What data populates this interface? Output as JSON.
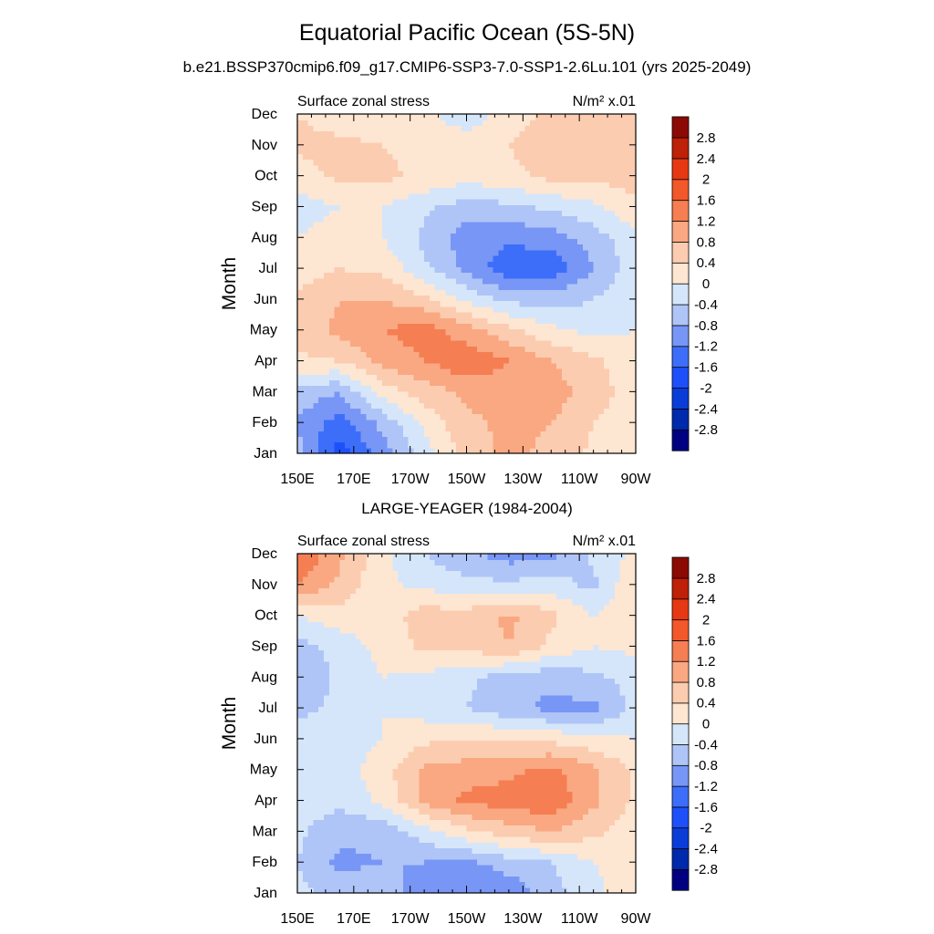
{
  "title": "Equatorial Pacific Ocean (5S-5N)",
  "subtitle": "b.e21.BSSP370cmip6.f09_g17.CMIP6-SSP3-7.0-SSP1-2.6Lu.101 (yrs 2025-2049)",
  "chart_data": [
    {
      "type": "heatmap",
      "title": "",
      "left_label": "Surface zonal stress",
      "units": "N/m² x.01",
      "ylabel": "Month",
      "x_ticks": [
        "150E",
        "170E",
        "170W",
        "150W",
        "130W",
        "110W",
        "90W"
      ],
      "y_ticks": [
        "Jan",
        "Feb",
        "Mar",
        "Apr",
        "May",
        "Jun",
        "Jul",
        "Aug",
        "Sep",
        "Oct",
        "Nov",
        "Dec"
      ],
      "xlim_degE": [
        150,
        270
      ],
      "x_values_degE": [
        150,
        165,
        180,
        195,
        210,
        225,
        240,
        255,
        270
      ],
      "values": [
        [
          -0.6,
          -1.8,
          -1.0,
          -0.2,
          0.6,
          0.9,
          0.7,
          0.3,
          0.0
        ],
        [
          -0.9,
          -1.4,
          -0.7,
          0.1,
          0.7,
          0.9,
          0.8,
          0.4,
          0.1
        ],
        [
          -0.5,
          -0.8,
          0.2,
          0.6,
          0.9,
          1.0,
          1.0,
          0.6,
          0.2
        ],
        [
          0.3,
          0.4,
          0.9,
          1.2,
          1.5,
          1.2,
          0.8,
          0.5,
          0.1
        ],
        [
          0.6,
          0.9,
          1.2,
          1.4,
          1.0,
          0.5,
          0.1,
          -0.1,
          0.0
        ],
        [
          0.5,
          0.8,
          0.8,
          0.5,
          -0.1,
          -0.5,
          -0.6,
          -0.4,
          0.0
        ],
        [
          0.2,
          0.4,
          0.3,
          -0.3,
          -0.9,
          -1.5,
          -1.5,
          -0.8,
          -0.2
        ],
        [
          0.0,
          0.2,
          0.0,
          -0.5,
          -1.0,
          -1.1,
          -1.0,
          -0.6,
          -0.1
        ],
        [
          -0.2,
          0.0,
          0.0,
          -0.3,
          -0.6,
          -0.5,
          -0.3,
          -0.1,
          0.3
        ],
        [
          0.2,
          0.5,
          0.5,
          0.3,
          0.2,
          0.3,
          0.5,
          0.5,
          0.6
        ],
        [
          0.5,
          0.5,
          0.4,
          0.3,
          0.3,
          0.4,
          0.6,
          0.6,
          0.6
        ],
        [
          0.4,
          0.2,
          0.1,
          0.1,
          -0.3,
          0.2,
          0.5,
          0.5,
          0.5
        ]
      ]
    },
    {
      "type": "heatmap",
      "title": "LARGE-YEAGER (1984-2004)",
      "left_label": "Surface zonal stress",
      "units": "N/m² x.01",
      "ylabel": "Month",
      "x_ticks": [
        "150E",
        "170E",
        "170W",
        "150W",
        "130W",
        "110W",
        "90W"
      ],
      "y_ticks": [
        "Jan",
        "Feb",
        "Mar",
        "Apr",
        "May",
        "Jun",
        "Jul",
        "Aug",
        "Sep",
        "Oct",
        "Nov",
        "Dec"
      ],
      "xlim_degE": [
        150,
        270
      ],
      "x_values_degE": [
        150,
        165,
        180,
        195,
        210,
        225,
        240,
        255,
        270
      ],
      "values": [
        [
          -0.3,
          -0.5,
          -0.6,
          -1.0,
          -1.2,
          -1.1,
          -0.6,
          -0.1,
          0.2
        ],
        [
          -0.4,
          -0.9,
          -0.8,
          -0.8,
          -0.9,
          -0.6,
          -0.4,
          0.0,
          0.2
        ],
        [
          -0.3,
          -0.7,
          -0.7,
          -0.2,
          0.3,
          0.6,
          0.8,
          0.5,
          0.2
        ],
        [
          -0.2,
          -0.3,
          0.1,
          0.9,
          1.3,
          1.4,
          1.5,
          0.9,
          0.3
        ],
        [
          -0.2,
          -0.2,
          0.2,
          0.9,
          1.0,
          1.1,
          1.3,
          0.9,
          0.3
        ],
        [
          -0.2,
          -0.2,
          0.0,
          0.3,
          0.4,
          0.4,
          0.3,
          0.1,
          0.0
        ],
        [
          -0.5,
          -0.3,
          0.0,
          -0.2,
          -0.4,
          -0.7,
          -0.9,
          -0.9,
          -0.3
        ],
        [
          -0.8,
          -0.3,
          0.0,
          -0.1,
          -0.3,
          -0.6,
          -0.7,
          -0.5,
          -0.2
        ],
        [
          -0.6,
          -0.2,
          0.1,
          0.5,
          0.5,
          0.8,
          0.3,
          0.0,
          0.1
        ],
        [
          0.0,
          0.2,
          0.2,
          0.6,
          0.6,
          0.9,
          0.5,
          0.0,
          0.3
        ],
        [
          1.2,
          0.7,
          0.1,
          -0.1,
          -0.3,
          -0.3,
          -0.2,
          -0.5,
          0.4
        ],
        [
          1.6,
          0.9,
          0.1,
          -0.4,
          -0.7,
          -1.0,
          -0.9,
          -0.3,
          0.1
        ]
      ]
    }
  ],
  "colorbar": {
    "labels": [
      "2.8",
      "2.4",
      "2",
      "1.6",
      "1.2",
      "0.8",
      "0.4",
      "0",
      "-0.4",
      "-0.8",
      "-1.2",
      "-1.6",
      "-2",
      "-2.4",
      "-2.8"
    ],
    "levels": [
      -2.8,
      -2.4,
      -2.0,
      -1.6,
      -1.2,
      -0.8,
      -0.4,
      0,
      0.4,
      0.8,
      1.2,
      1.6,
      2.0,
      2.4,
      2.8
    ],
    "colors": [
      "#000080",
      "#002AAC",
      "#0A3CD8",
      "#1E50FA",
      "#3C6EFA",
      "#7896F5",
      "#AFC5F8",
      "#D6E6FA",
      "#FDE6D2",
      "#FCCCB0",
      "#F9A882",
      "#F57E52",
      "#F2582A",
      "#E63812",
      "#BE2008",
      "#8C0A04"
    ]
  }
}
